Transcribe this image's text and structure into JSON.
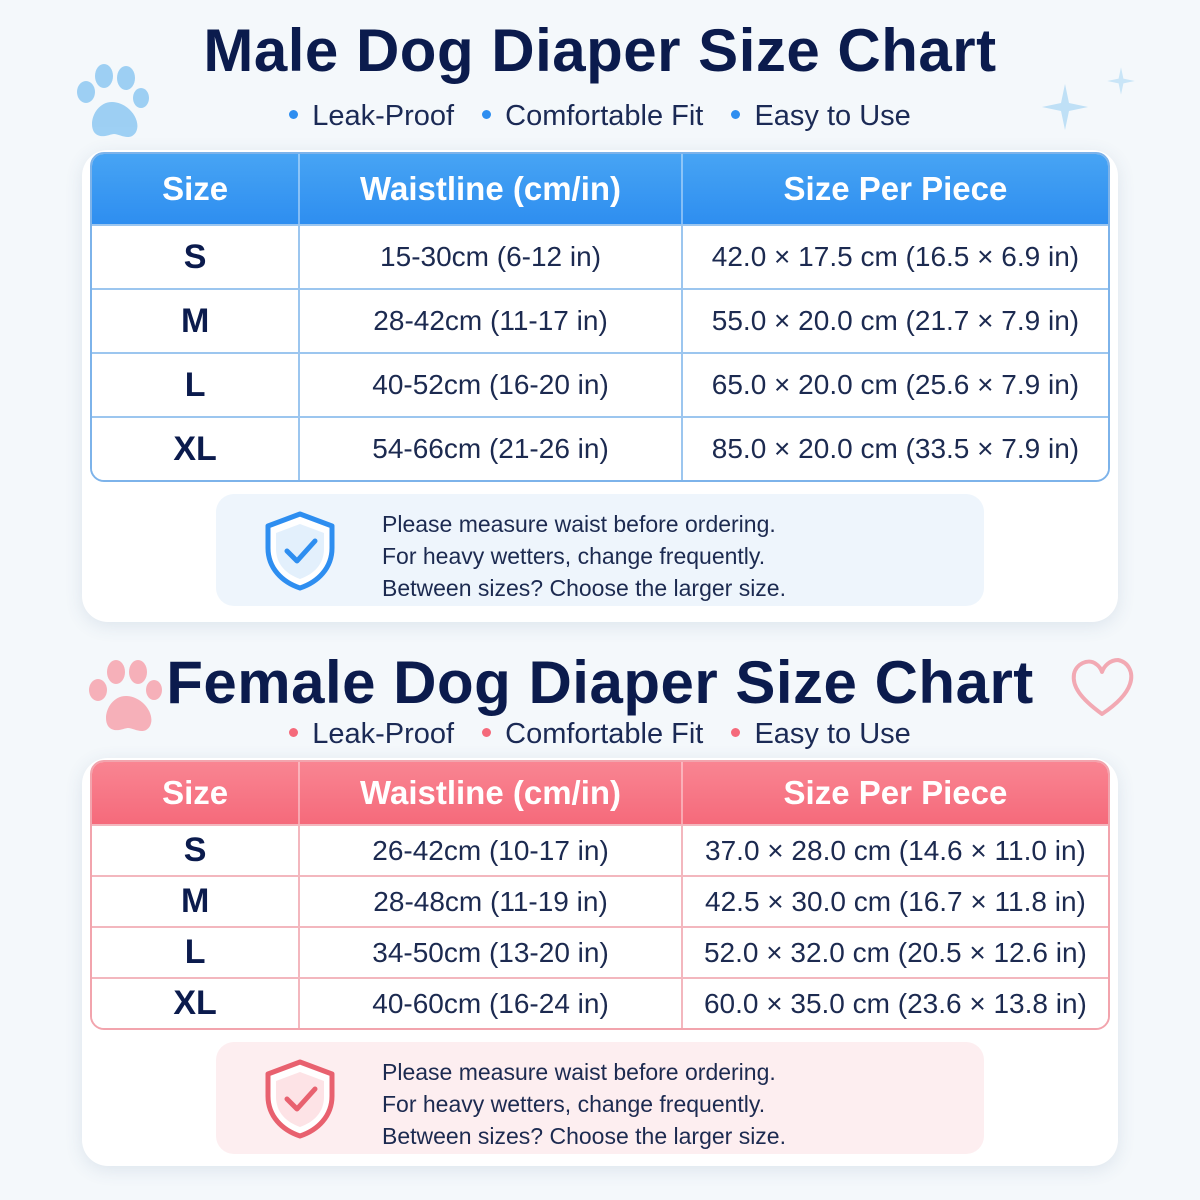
{
  "colors": {
    "male_accent": "#2e8ef0",
    "female_accent": "#f56a7b",
    "title": "#0b1b4d"
  },
  "male": {
    "title": "Male Dog Diaper Size Chart",
    "bullets": [
      "Leak-Proof",
      "Comfortable Fit",
      "Easy to Use"
    ],
    "headers": [
      "Size",
      "Waistline (cm/in)",
      "Size Per Piece"
    ],
    "rows": [
      {
        "size": "S",
        "waist": "15-30cm (6-12 in)",
        "piece": "42.0 × 17.5 cm (16.5 × 6.9 in)"
      },
      {
        "size": "M",
        "waist": "28-42cm (11-17 in)",
        "piece": "55.0 × 20.0 cm (21.7 × 7.9 in)"
      },
      {
        "size": "L",
        "waist": "40-52cm (16-20 in)",
        "piece": "65.0 × 20.0 cm (25.6 × 7.9 in)"
      },
      {
        "size": "XL",
        "waist": "54-66cm (21-26 in)",
        "piece": "85.0 × 20.0 cm (33.5 × 7.9 in)"
      }
    ],
    "note": [
      "Please measure waist before ordering.",
      "For heavy wetters, change frequently.",
      "Between sizes? Choose the larger size."
    ],
    "icon": "shield-check-icon"
  },
  "female": {
    "title": "Female Dog Diaper Size Chart",
    "bullets": [
      "Leak-Proof",
      "Comfortable Fit",
      "Easy to Use"
    ],
    "headers": [
      "Size",
      "Waistline (cm/in)",
      "Size Per Piece"
    ],
    "rows": [
      {
        "size": "S",
        "waist": "26-42cm (10-17 in)",
        "piece": "37.0 × 28.0 cm (14.6 × 11.0 in)"
      },
      {
        "size": "M",
        "waist": "28-48cm (11-19 in)",
        "piece": "42.5 × 30.0 cm (16.7 × 11.8 in)"
      },
      {
        "size": "L",
        "waist": "34-50cm (13-20 in)",
        "piece": "52.0 × 32.0 cm (20.5 × 12.6 in)"
      },
      {
        "size": "XL",
        "waist": "40-60cm (16-24 in)",
        "piece": "60.0 × 35.0 cm (23.6 × 13.8 in)"
      }
    ],
    "note": [
      "Please measure waist before ordering.",
      "For heavy wetters, change frequently.",
      "Between sizes? Choose the larger size."
    ],
    "icon": "shield-check-icon"
  }
}
